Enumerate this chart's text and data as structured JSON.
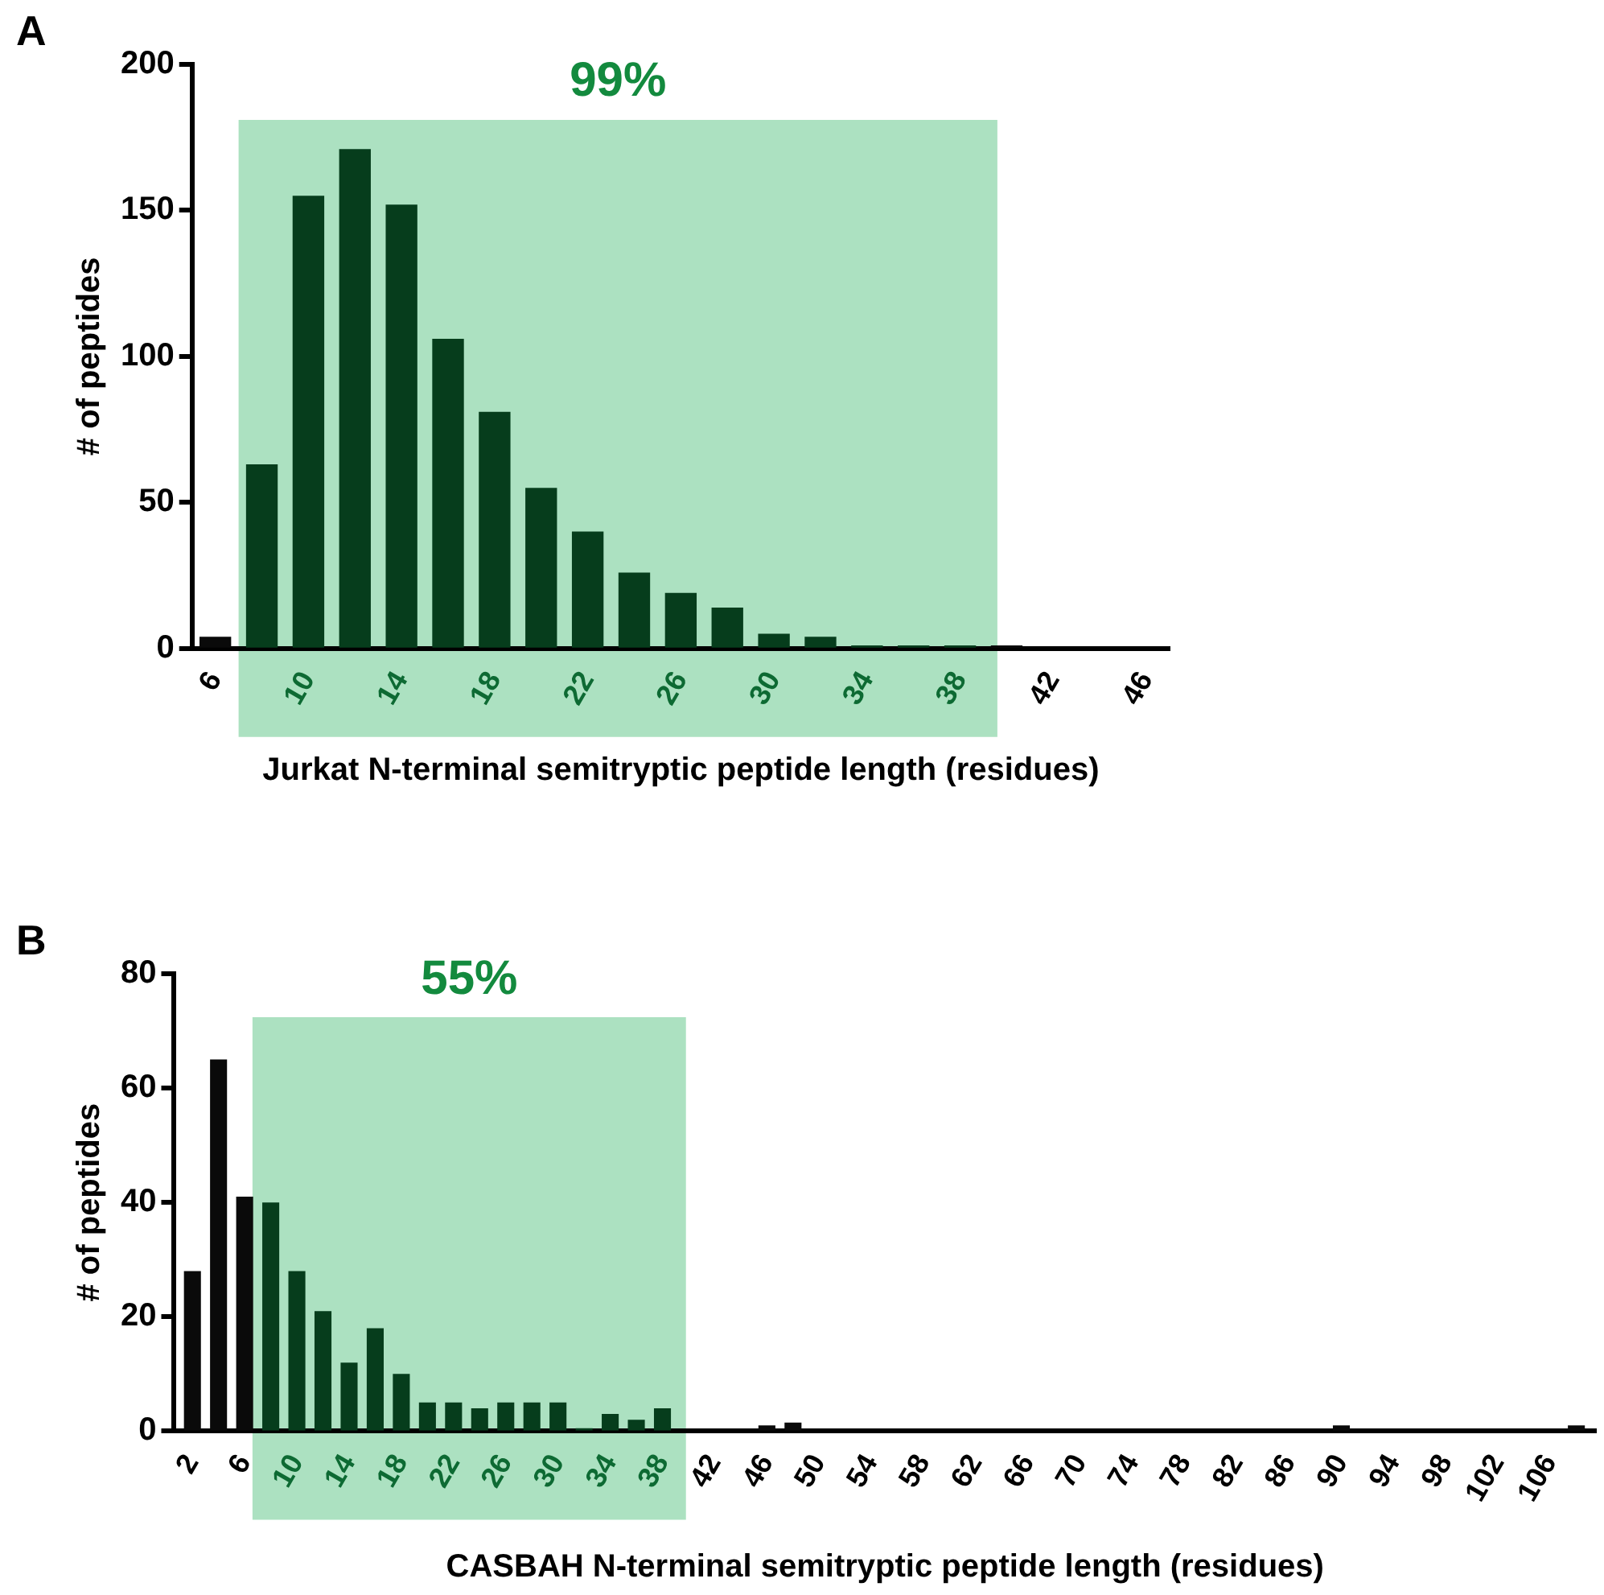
{
  "chart_data": [
    {
      "type": "bar",
      "title": "A",
      "xlabel": "Jurkat N-terminal semitryptic peptide length (residues)",
      "ylabel": "# of peptides",
      "x": [
        6,
        8,
        10,
        12,
        14,
        16,
        18,
        20,
        22,
        24,
        26,
        28,
        30,
        32,
        34,
        36,
        38,
        40,
        42,
        44,
        46
      ],
      "values": [
        4,
        63,
        155,
        171,
        152,
        106,
        81,
        55,
        40,
        26,
        19,
        14,
        5,
        4,
        1,
        1,
        1,
        1,
        0,
        0,
        0
      ],
      "colors": [
        "#0a0a0a",
        "#063d1c",
        "#063d1c",
        "#063d1c",
        "#063d1c",
        "#063d1c",
        "#063d1c",
        "#063d1c",
        "#063d1c",
        "#063d1c",
        "#063d1c",
        "#063d1c",
        "#063d1c",
        "#063d1c",
        "#063d1c",
        "#063d1c",
        "#063d1c",
        "#0a0a0a",
        "#0a0a0a",
        "#0a0a0a",
        "#0a0a0a"
      ],
      "xlim": [
        5,
        47
      ],
      "xticks": [
        6,
        10,
        14,
        18,
        22,
        26,
        30,
        34,
        38,
        42,
        46
      ],
      "ylim": [
        0,
        200
      ],
      "yticks": [
        0,
        50,
        100,
        150,
        200
      ],
      "bands": [
        {
          "axis": "x",
          "from": 7,
          "to": 39.6,
          "label": "99%",
          "color": "#ace1c1"
        }
      ],
      "grid": false,
      "legend": false
    },
    {
      "type": "bar",
      "title": "B",
      "xlabel": "CASBAH N-terminal semitryptic peptide length (residues)",
      "ylabel": "# of peptides",
      "x": [
        2,
        4,
        6,
        8,
        10,
        12,
        14,
        16,
        18,
        20,
        22,
        24,
        26,
        28,
        30,
        32,
        34,
        36,
        38,
        40,
        42,
        44,
        46,
        48,
        50,
        52,
        54,
        56,
        58,
        60,
        62,
        64,
        66,
        68,
        70,
        72,
        74,
        76,
        78,
        80,
        82,
        84,
        86,
        88,
        90,
        92,
        94,
        96,
        98,
        100,
        102,
        104,
        106,
        108
      ],
      "values": [
        28,
        65,
        41,
        40,
        28,
        21,
        12,
        18,
        10,
        5,
        5,
        4,
        5,
        5,
        5,
        0.5,
        3,
        2,
        4,
        0,
        0,
        0,
        1,
        1.5,
        0,
        0,
        0,
        0,
        0,
        0,
        0,
        0,
        0,
        0,
        0,
        0,
        0,
        0,
        0,
        0,
        0,
        0,
        0,
        0,
        1,
        0,
        0,
        0,
        0,
        0,
        0,
        0,
        0,
        1
      ],
      "colors": [
        "#0a0a0a",
        "#0a0a0a",
        "#0a0a0a",
        "#063d1c",
        "#063d1c",
        "#063d1c",
        "#063d1c",
        "#063d1c",
        "#063d1c",
        "#063d1c",
        "#063d1c",
        "#063d1c",
        "#063d1c",
        "#063d1c",
        "#063d1c",
        "#063d1c",
        "#063d1c",
        "#063d1c",
        "#063d1c",
        "#0a0a0a",
        "#0a0a0a",
        "#0a0a0a",
        "#0a0a0a",
        "#0a0a0a",
        "#0a0a0a",
        "#0a0a0a",
        "#0a0a0a",
        "#0a0a0a",
        "#0a0a0a",
        "#0a0a0a",
        "#0a0a0a",
        "#0a0a0a",
        "#0a0a0a",
        "#0a0a0a",
        "#0a0a0a",
        "#0a0a0a",
        "#0a0a0a",
        "#0a0a0a",
        "#0a0a0a",
        "#0a0a0a",
        "#0a0a0a",
        "#0a0a0a",
        "#0a0a0a",
        "#0a0a0a",
        "#0a0a0a",
        "#0a0a0a",
        "#0a0a0a",
        "#0a0a0a",
        "#0a0a0a",
        "#0a0a0a",
        "#0a0a0a",
        "#0a0a0a",
        "#0a0a0a",
        "#0a0a0a"
      ],
      "xlim": [
        0.6,
        109.5
      ],
      "xticks": [
        2,
        6,
        10,
        14,
        18,
        22,
        26,
        30,
        34,
        38,
        42,
        46,
        50,
        54,
        58,
        62,
        66,
        70,
        74,
        78,
        82,
        86,
        90,
        94,
        98,
        102,
        106
      ],
      "ylim": [
        0,
        80
      ],
      "yticks": [
        0,
        20,
        40,
        60,
        80
      ],
      "bands": [
        {
          "axis": "x",
          "from": 6.6,
          "to": 39.8,
          "label": "55%",
          "color": "#ace1c1"
        }
      ],
      "grid": false,
      "legend": false
    }
  ]
}
